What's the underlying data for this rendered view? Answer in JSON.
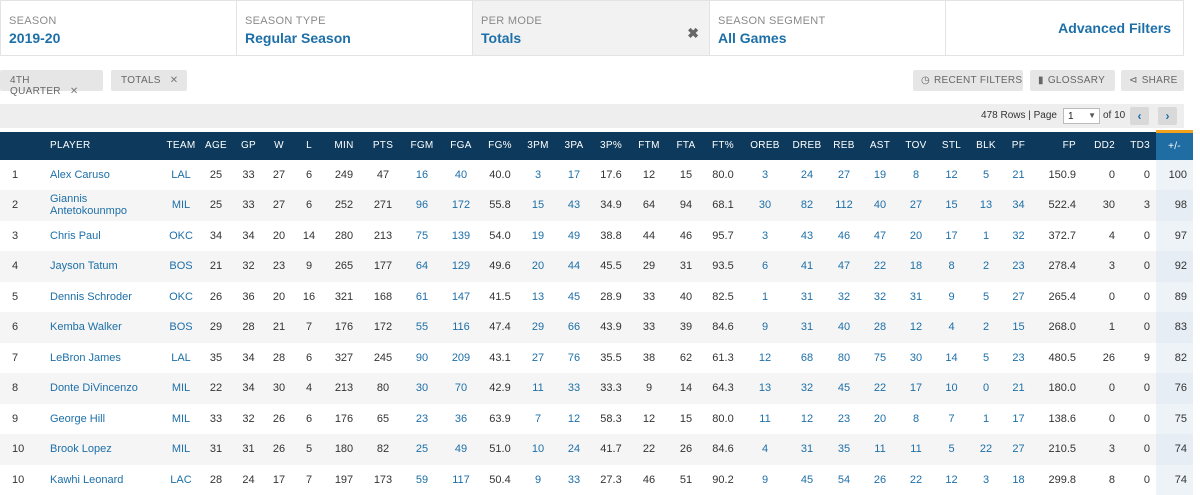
{
  "filters": {
    "season": {
      "label": "SEASON",
      "value": "2019-20"
    },
    "season_type": {
      "label": "SEASON TYPE",
      "value": "Regular Season"
    },
    "per_mode": {
      "label": "PER MODE",
      "value": "Totals",
      "clear": "✖"
    },
    "season_segment": {
      "label": "SEASON SEGMENT",
      "value": "All Games"
    },
    "advanced": {
      "label": "Advanced Filters"
    }
  },
  "tags": [
    {
      "label": "4TH QUARTER",
      "close": "✕"
    },
    {
      "label": "TOTALS",
      "close": "✕"
    }
  ],
  "toolbar": {
    "recent": {
      "icon": "clock-icon",
      "label": "RECENT FILTERS"
    },
    "glossary": {
      "icon": "book-icon",
      "label": "GLOSSARY"
    },
    "share": {
      "icon": "share-icon",
      "label": "SHARE"
    }
  },
  "pager": {
    "rows_text": "478 Rows | Page",
    "page_value": "1",
    "of_text": "of 10",
    "prev": "‹",
    "next": "›"
  },
  "table": {
    "columns": [
      "PLAYER",
      "TEAM",
      "AGE",
      "GP",
      "W",
      "L",
      "MIN",
      "PTS",
      "FGM",
      "FGA",
      "FG%",
      "3PM",
      "3PA",
      "3P%",
      "FTM",
      "FTA",
      "FT%",
      "OREB",
      "DREB",
      "REB",
      "AST",
      "TOV",
      "STL",
      "BLK",
      "PF",
      "FP",
      "DD2",
      "TD3",
      "+/-"
    ],
    "rows": [
      [
        "1",
        "Alex Caruso",
        "LAL",
        "25",
        "33",
        "27",
        "6",
        "249",
        "47",
        "16",
        "40",
        "40.0",
        "3",
        "17",
        "17.6",
        "12",
        "15",
        "80.0",
        "3",
        "24",
        "27",
        "19",
        "8",
        "12",
        "5",
        "21",
        "150.9",
        "0",
        "0",
        "100"
      ],
      [
        "2",
        "Giannis Antetokounmpo",
        "MIL",
        "25",
        "33",
        "27",
        "6",
        "252",
        "271",
        "96",
        "172",
        "55.8",
        "15",
        "43",
        "34.9",
        "64",
        "94",
        "68.1",
        "30",
        "82",
        "112",
        "40",
        "27",
        "15",
        "13",
        "34",
        "522.4",
        "30",
        "3",
        "98"
      ],
      [
        "3",
        "Chris Paul",
        "OKC",
        "34",
        "34",
        "20",
        "14",
        "280",
        "213",
        "75",
        "139",
        "54.0",
        "19",
        "49",
        "38.8",
        "44",
        "46",
        "95.7",
        "3",
        "43",
        "46",
        "47",
        "20",
        "17",
        "1",
        "32",
        "372.7",
        "4",
        "0",
        "97"
      ],
      [
        "4",
        "Jayson Tatum",
        "BOS",
        "21",
        "32",
        "23",
        "9",
        "265",
        "177",
        "64",
        "129",
        "49.6",
        "20",
        "44",
        "45.5",
        "29",
        "31",
        "93.5",
        "6",
        "41",
        "47",
        "22",
        "18",
        "8",
        "2",
        "23",
        "278.4",
        "3",
        "0",
        "92"
      ],
      [
        "5",
        "Dennis Schroder",
        "OKC",
        "26",
        "36",
        "20",
        "16",
        "321",
        "168",
        "61",
        "147",
        "41.5",
        "13",
        "45",
        "28.9",
        "33",
        "40",
        "82.5",
        "1",
        "31",
        "32",
        "32",
        "31",
        "9",
        "5",
        "27",
        "265.4",
        "0",
        "0",
        "89"
      ],
      [
        "6",
        "Kemba Walker",
        "BOS",
        "29",
        "28",
        "21",
        "7",
        "176",
        "172",
        "55",
        "116",
        "47.4",
        "29",
        "66",
        "43.9",
        "33",
        "39",
        "84.6",
        "9",
        "31",
        "40",
        "28",
        "12",
        "4",
        "2",
        "15",
        "268.0",
        "1",
        "0",
        "83"
      ],
      [
        "7",
        "LeBron James",
        "LAL",
        "35",
        "34",
        "28",
        "6",
        "327",
        "245",
        "90",
        "209",
        "43.1",
        "27",
        "76",
        "35.5",
        "38",
        "62",
        "61.3",
        "12",
        "68",
        "80",
        "75",
        "30",
        "14",
        "5",
        "23",
        "480.5",
        "26",
        "9",
        "82"
      ],
      [
        "8",
        "Donte DiVincenzo",
        "MIL",
        "22",
        "34",
        "30",
        "4",
        "213",
        "80",
        "30",
        "70",
        "42.9",
        "11",
        "33",
        "33.3",
        "9",
        "14",
        "64.3",
        "13",
        "32",
        "45",
        "22",
        "17",
        "10",
        "0",
        "21",
        "180.0",
        "0",
        "0",
        "76"
      ],
      [
        "9",
        "George Hill",
        "MIL",
        "33",
        "32",
        "26",
        "6",
        "176",
        "65",
        "23",
        "36",
        "63.9",
        "7",
        "12",
        "58.3",
        "12",
        "15",
        "80.0",
        "11",
        "12",
        "23",
        "20",
        "8",
        "7",
        "1",
        "17",
        "138.6",
        "0",
        "0",
        "75"
      ],
      [
        "10",
        "Brook Lopez",
        "MIL",
        "31",
        "31",
        "26",
        "5",
        "180",
        "82",
        "25",
        "49",
        "51.0",
        "10",
        "24",
        "41.7",
        "22",
        "26",
        "84.6",
        "4",
        "31",
        "35",
        "11",
        "11",
        "5",
        "22",
        "27",
        "210.5",
        "3",
        "0",
        "74"
      ],
      [
        "10",
        "Kawhi Leonard",
        "LAC",
        "28",
        "24",
        "17",
        "7",
        "197",
        "173",
        "59",
        "117",
        "50.4",
        "9",
        "33",
        "27.3",
        "46",
        "51",
        "90.2",
        "9",
        "45",
        "54",
        "26",
        "22",
        "12",
        "3",
        "18",
        "299.8",
        "8",
        "0",
        "74"
      ]
    ]
  },
  "colors": {
    "header_bg": "#0d3a5c",
    "link": "#1d6fa8",
    "sort_col": "#1f6da3",
    "sort_accent": "#f3a21b"
  }
}
